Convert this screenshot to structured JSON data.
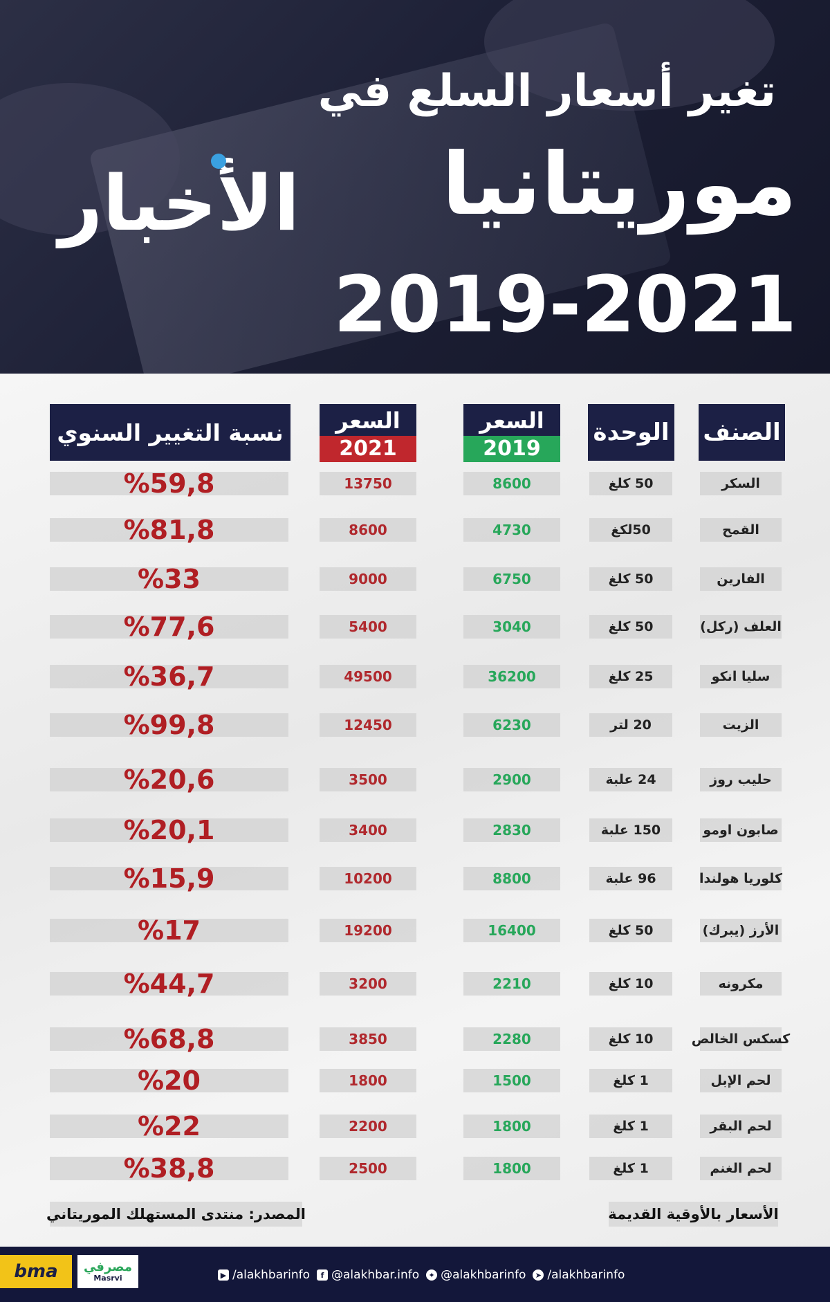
{
  "header": {
    "title_line1": "تغير أسعار السلع في",
    "title_line2": "موريتانيا",
    "title_years": "2019-2021",
    "logo_text": "الأخبار"
  },
  "table": {
    "headers": {
      "item": "الصنف",
      "unit": "الوحدة",
      "price_label": "السعر",
      "year_2019": "2019",
      "year_2021": "2021",
      "change": "نسبة التغيير السنوي"
    },
    "rows": [
      {
        "item": "السكر",
        "unit": "50 كلغ",
        "p2019": "8600",
        "p2021": "13750",
        "change": "%59,8"
      },
      {
        "item": "القمح",
        "unit": "50لكغ",
        "p2019": "4730",
        "p2021": "8600",
        "change": "%81,8"
      },
      {
        "item": "الفارين",
        "unit": "50 كلغ",
        "p2019": "6750",
        "p2021": "9000",
        "change": "%33"
      },
      {
        "item": "العلف (ركل)",
        "unit": "50 كلغ",
        "p2019": "3040",
        "p2021": "5400",
        "change": "%77,6"
      },
      {
        "item": "سليا انكو",
        "unit": "25 كلغ",
        "p2019": "36200",
        "p2021": "49500",
        "change": "%36,7"
      },
      {
        "item": "الزيت",
        "unit": "20 لتر",
        "p2019": "6230",
        "p2021": "12450",
        "change": "%99,8"
      },
      {
        "item": "حليب روز",
        "unit": "24 علبة",
        "p2019": "2900",
        "p2021": "3500",
        "change": "%20,6"
      },
      {
        "item": "صابون اومو",
        "unit": "150 علبة",
        "p2019": "2830",
        "p2021": "3400",
        "change": "%20,1"
      },
      {
        "item": "كلوريا هولندا",
        "unit": "96 علبة",
        "p2019": "8800",
        "p2021": "10200",
        "change": "%15,9"
      },
      {
        "item": "الأرز (يبرك)",
        "unit": "50 كلغ",
        "p2019": "16400",
        "p2021": "19200",
        "change": "%17"
      },
      {
        "item": "مكرونه",
        "unit": "10 كلغ",
        "p2019": "2210",
        "p2021": "3200",
        "change": "%44,7"
      },
      {
        "item": "كسكس الخالص",
        "unit": "10 كلغ",
        "p2019": "2280",
        "p2021": "3850",
        "change": "%68,8"
      },
      {
        "item": "لحم الإبل",
        "unit": "1 كلغ",
        "p2019": "1500",
        "p2021": "1800",
        "change": "%20"
      },
      {
        "item": "لحم البقر",
        "unit": "1 كلغ",
        "p2019": "1800",
        "p2021": "2200",
        "change": "%22"
      },
      {
        "item": "لحم الغنم",
        "unit": "1 كلغ",
        "p2019": "1800",
        "p2021": "2500",
        "change": "%38,8"
      }
    ]
  },
  "notes": {
    "currency": "الأسعار بالأوقية القديمة",
    "source": "المصدر: منتدى المستهلك الموريتاني"
  },
  "footer": {
    "socials": [
      {
        "icon": "youtube-icon",
        "glyph": "▶",
        "handle": "/alakhbarinfo"
      },
      {
        "icon": "facebook-icon",
        "glyph": "f",
        "handle": "@alakhbar.info"
      },
      {
        "icon": "twitter-icon",
        "glyph": "✦",
        "handle": "@alakhbarinfo"
      },
      {
        "icon": "telegram-icon",
        "glyph": "➤",
        "handle": "/alakhbarinfo"
      }
    ],
    "sponsor_masrvi_ar": "مصرفي",
    "sponsor_masrvi_en": "Masrvi",
    "sponsor_bma": "bma"
  },
  "colors": {
    "navy": "#1c2045",
    "green_2019": "#27a75a",
    "red_2021": "#c0272d",
    "change_red": "#b01e23"
  }
}
